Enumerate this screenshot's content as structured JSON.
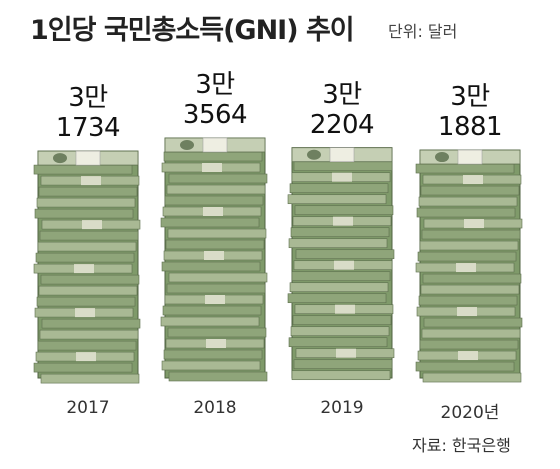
{
  "chart_data": {
    "type": "bar",
    "title": "1인당 국민총소득(GNI) 추이",
    "subtitle": "단위: 달러",
    "source": "자료: 한국은행",
    "categories": [
      "2017",
      "2018",
      "2019",
      "2020년"
    ],
    "values": [
      31734,
      33564,
      32204,
      31881
    ],
    "value_labels": [
      "3만\n1734",
      "3만\n3564",
      "3만\n2204",
      "3만\n1881"
    ],
    "color": "#7f9a6a"
  }
}
